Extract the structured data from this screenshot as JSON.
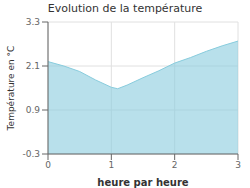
{
  "chart_data": {
    "type": "area",
    "title": "Evolution de la température",
    "x_label": "heure par heure",
    "y_label": "Température en °C",
    "x": [
      0,
      0.25,
      0.5,
      0.75,
      1.0,
      1.1,
      1.25,
      1.5,
      1.75,
      2.0,
      2.25,
      2.5,
      2.75,
      3.0
    ],
    "values": [
      2.22,
      2.1,
      1.95,
      1.72,
      1.52,
      1.48,
      1.58,
      1.78,
      1.97,
      2.18,
      2.33,
      2.5,
      2.65,
      2.78
    ],
    "color": "#88ccdd",
    "xlim": [
      0,
      3
    ],
    "ylim": [
      -0.3,
      3.3
    ],
    "xticks": [
      0,
      1,
      2,
      3
    ],
    "yticks": [
      -0.3,
      0.9,
      2.1,
      3.3
    ],
    "grid": true
  }
}
